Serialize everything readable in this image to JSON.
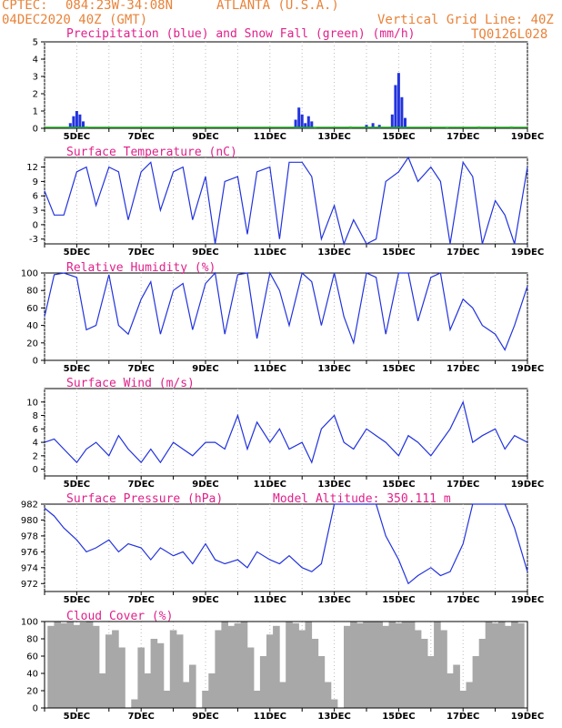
{
  "header": {
    "source": "CPTEC:",
    "coords": "084:23W-34:08N",
    "location": "ATLANTA (U.S.A.)",
    "run": "04DEC2020 40Z (GMT)",
    "grid_note": "Vertical Grid Line: 40Z",
    "code": "TQ0126L028"
  },
  "colors": {
    "line": "#2233dd",
    "snow": "#22aa22",
    "cloud": "#a8a8a8",
    "title": "#e0208a",
    "header": "#e8833a"
  },
  "chart_data": [
    {
      "type": "bar",
      "title": "Precipitation (blue) and Snow Fall (green) (mm/h)",
      "ylim": [
        0,
        5
      ],
      "yticks": [
        0,
        1,
        2,
        3,
        4,
        5
      ],
      "xlim": [
        4,
        19
      ],
      "xticks": [
        "5DEC",
        "7DEC",
        "9DEC",
        "11DEC",
        "13DEC",
        "15DEC",
        "17DEC",
        "19DEC"
      ],
      "series": [
        {
          "name": "Precipitation",
          "values": [
            [
              4.8,
              0.3
            ],
            [
              4.9,
              0.7
            ],
            [
              5.0,
              1.0
            ],
            [
              5.1,
              0.8
            ],
            [
              5.2,
              0.4
            ],
            [
              11.8,
              0.5
            ],
            [
              11.9,
              1.2
            ],
            [
              12.0,
              0.8
            ],
            [
              12.1,
              0.3
            ],
            [
              12.2,
              0.7
            ],
            [
              12.3,
              0.4
            ],
            [
              14.0,
              0.2
            ],
            [
              14.2,
              0.3
            ],
            [
              14.4,
              0.2
            ],
            [
              14.8,
              0.8
            ],
            [
              14.9,
              2.5
            ],
            [
              15.0,
              3.2
            ],
            [
              15.1,
              1.8
            ],
            [
              15.2,
              0.6
            ]
          ]
        },
        {
          "name": "Snow Fall",
          "values": [
            [
              5.3,
              0.1
            ],
            [
              12.4,
              0.05
            ],
            [
              13.5,
              0.1
            ],
            [
              16.5,
              0.08
            ],
            [
              17.5,
              0.1
            ],
            [
              18.5,
              0.1
            ]
          ]
        }
      ]
    },
    {
      "type": "line",
      "title": "Surface Temperature (nC)",
      "ylim": [
        -4,
        14
      ],
      "yticks": [
        -3,
        0,
        3,
        6,
        9,
        12
      ],
      "xlim": [
        4,
        19
      ],
      "xticks": [
        "5DEC",
        "7DEC",
        "9DEC",
        "11DEC",
        "13DEC",
        "15DEC",
        "17DEC",
        "19DEC"
      ],
      "x": [
        4,
        4.3,
        4.6,
        5,
        5.3,
        5.6,
        6,
        6.3,
        6.6,
        7,
        7.3,
        7.6,
        8,
        8.3,
        8.6,
        9,
        9.3,
        9.6,
        10,
        10.3,
        10.6,
        11,
        11.3,
        11.6,
        12,
        12.3,
        12.6,
        13,
        13.3,
        13.6,
        14,
        14.3,
        14.6,
        15,
        15.3,
        15.6,
        16,
        16.3,
        16.6,
        17,
        17.3,
        17.6,
        18,
        18.3,
        18.6,
        19
      ],
      "values": [
        7,
        2,
        2,
        11,
        12,
        4,
        12,
        11,
        1,
        11,
        13,
        3,
        11,
        12,
        1,
        10,
        -4,
        9,
        10,
        -2,
        11,
        12,
        -3,
        13,
        13,
        10,
        -3,
        4,
        -4,
        1,
        -4,
        -3,
        9,
        11,
        14,
        9,
        12,
        9,
        -4,
        13,
        10,
        -4,
        5,
        2,
        -4,
        12
      ]
    },
    {
      "type": "line",
      "title": "Relative Humidity (%)",
      "ylim": [
        0,
        100
      ],
      "yticks": [
        0,
        20,
        40,
        60,
        80,
        100
      ],
      "xlim": [
        4,
        19
      ],
      "xticks": [
        "5DEC",
        "7DEC",
        "9DEC",
        "11DEC",
        "13DEC",
        "15DEC",
        "17DEC",
        "19DEC"
      ],
      "x": [
        4,
        4.3,
        4.6,
        5,
        5.3,
        5.6,
        6,
        6.3,
        6.6,
        7,
        7.3,
        7.6,
        8,
        8.3,
        8.6,
        9,
        9.3,
        9.6,
        10,
        10.3,
        10.6,
        11,
        11.3,
        11.6,
        12,
        12.3,
        12.6,
        13,
        13.3,
        13.6,
        14,
        14.3,
        14.6,
        15,
        15.3,
        15.6,
        16,
        16.3,
        16.6,
        17,
        17.3,
        17.6,
        18,
        18.3,
        18.6,
        19
      ],
      "values": [
        50,
        98,
        100,
        95,
        35,
        40,
        98,
        40,
        30,
        70,
        90,
        30,
        80,
        88,
        35,
        88,
        100,
        30,
        98,
        100,
        25,
        100,
        80,
        40,
        100,
        90,
        40,
        100,
        50,
        20,
        100,
        95,
        30,
        100,
        100,
        45,
        95,
        100,
        35,
        70,
        60,
        40,
        30,
        12,
        40,
        85
      ]
    },
    {
      "type": "line",
      "title": "Surface Wind (m/s)",
      "ylim": [
        -1,
        12
      ],
      "yticks": [
        0,
        2,
        4,
        6,
        8,
        10
      ],
      "xlim": [
        4,
        19
      ],
      "xticks": [
        "5DEC",
        "7DEC",
        "9DEC",
        "11DEC",
        "13DEC",
        "15DEC",
        "17DEC",
        "19DEC"
      ],
      "x": [
        4,
        4.3,
        4.6,
        5,
        5.3,
        5.6,
        6,
        6.3,
        6.6,
        7,
        7.3,
        7.6,
        8,
        8.3,
        8.6,
        9,
        9.3,
        9.6,
        10,
        10.3,
        10.6,
        11,
        11.3,
        11.6,
        12,
        12.3,
        12.6,
        13,
        13.3,
        13.6,
        14,
        14.3,
        14.6,
        15,
        15.3,
        15.6,
        16,
        16.3,
        16.6,
        17,
        17.3,
        17.6,
        18,
        18.3,
        18.6,
        19
      ],
      "values": [
        4,
        4.5,
        3,
        1,
        3,
        4,
        2,
        5,
        3,
        1,
        3,
        1,
        4,
        3,
        2,
        4,
        4,
        3,
        8,
        3,
        7,
        4,
        6,
        3,
        4,
        1,
        6,
        8,
        4,
        3,
        6,
        5,
        4,
        2,
        5,
        4,
        2,
        4,
        6,
        10,
        4,
        5,
        6,
        3,
        5,
        4
      ]
    },
    {
      "type": "line",
      "title": "Surface Pressure (hPa)",
      "annotation": "Model Altitude: 350.111 m",
      "ylim": [
        971,
        982
      ],
      "yticks": [
        972,
        974,
        976,
        978,
        980,
        982
      ],
      "xlim": [
        4,
        19
      ],
      "xticks": [
        "5DEC",
        "7DEC",
        "9DEC",
        "11DEC",
        "13DEC",
        "15DEC",
        "17DEC",
        "19DEC"
      ],
      "x": [
        4,
        4.3,
        4.6,
        5,
        5.3,
        5.6,
        6,
        6.3,
        6.6,
        7,
        7.3,
        7.6,
        8,
        8.3,
        8.6,
        9,
        9.3,
        9.6,
        10,
        10.3,
        10.6,
        11,
        11.3,
        11.6,
        12,
        12.3,
        12.6,
        13,
        13.3,
        13.6,
        14,
        14.3,
        14.6,
        15,
        15.3,
        15.6,
        16,
        16.3,
        16.6,
        17,
        17.3,
        17.6,
        18,
        18.3,
        18.6,
        19
      ],
      "values": [
        981.5,
        980.5,
        979,
        977.5,
        976,
        976.5,
        977.5,
        976,
        977,
        976.5,
        975,
        976.5,
        975.5,
        976,
        974.5,
        977,
        975,
        974.5,
        975,
        974,
        976,
        975,
        974.5,
        975.5,
        974,
        973.5,
        974.5,
        982,
        982,
        982,
        982,
        982,
        978,
        975,
        972,
        973,
        974,
        973,
        973.5,
        977,
        982,
        982,
        982,
        982,
        979,
        973.5
      ]
    },
    {
      "type": "bar",
      "title": "Cloud Cover (%)",
      "ylim": [
        0,
        100
      ],
      "yticks": [
        0,
        20,
        40,
        60,
        80,
        100
      ],
      "xlim": [
        4,
        19
      ],
      "xticks": [
        "5DEC",
        "7DEC",
        "9DEC",
        "11DEC",
        "13DEC",
        "15DEC",
        "17DEC",
        "19DEC"
      ],
      "x": [
        4.2,
        4.4,
        4.6,
        4.8,
        5.0,
        5.2,
        5.4,
        5.6,
        5.8,
        6.0,
        6.2,
        6.4,
        6.6,
        6.8,
        7.0,
        7.2,
        7.4,
        7.6,
        7.8,
        8.0,
        8.2,
        8.4,
        8.6,
        8.8,
        9.0,
        9.2,
        9.4,
        9.6,
        9.8,
        10.0,
        10.2,
        10.4,
        10.6,
        10.8,
        11.0,
        11.2,
        11.4,
        11.6,
        11.8,
        12.0,
        12.2,
        12.4,
        12.6,
        12.8,
        13.0,
        13.2,
        13.4,
        13.6,
        13.8,
        14.0,
        14.2,
        14.4,
        14.6,
        14.8,
        15.0,
        15.2,
        15.4,
        15.6,
        15.8,
        16.0,
        16.2,
        16.4,
        16.6,
        16.8,
        17.0,
        17.2,
        17.4,
        17.6,
        17.8,
        18.0,
        18.2,
        18.4,
        18.6,
        18.8
      ],
      "values": [
        95,
        100,
        98,
        100,
        96,
        99,
        100,
        95,
        40,
        85,
        90,
        70,
        0,
        10,
        70,
        40,
        80,
        75,
        20,
        90,
        85,
        30,
        50,
        0,
        20,
        40,
        90,
        100,
        95,
        98,
        100,
        70,
        20,
        60,
        85,
        95,
        30,
        100,
        98,
        90,
        100,
        80,
        60,
        30,
        10,
        0,
        95,
        100,
        98,
        100,
        100,
        100,
        95,
        100,
        98,
        100,
        100,
        90,
        80,
        60,
        100,
        90,
        40,
        50,
        20,
        30,
        60,
        80,
        100,
        98,
        100,
        95,
        100,
        98
      ]
    }
  ]
}
